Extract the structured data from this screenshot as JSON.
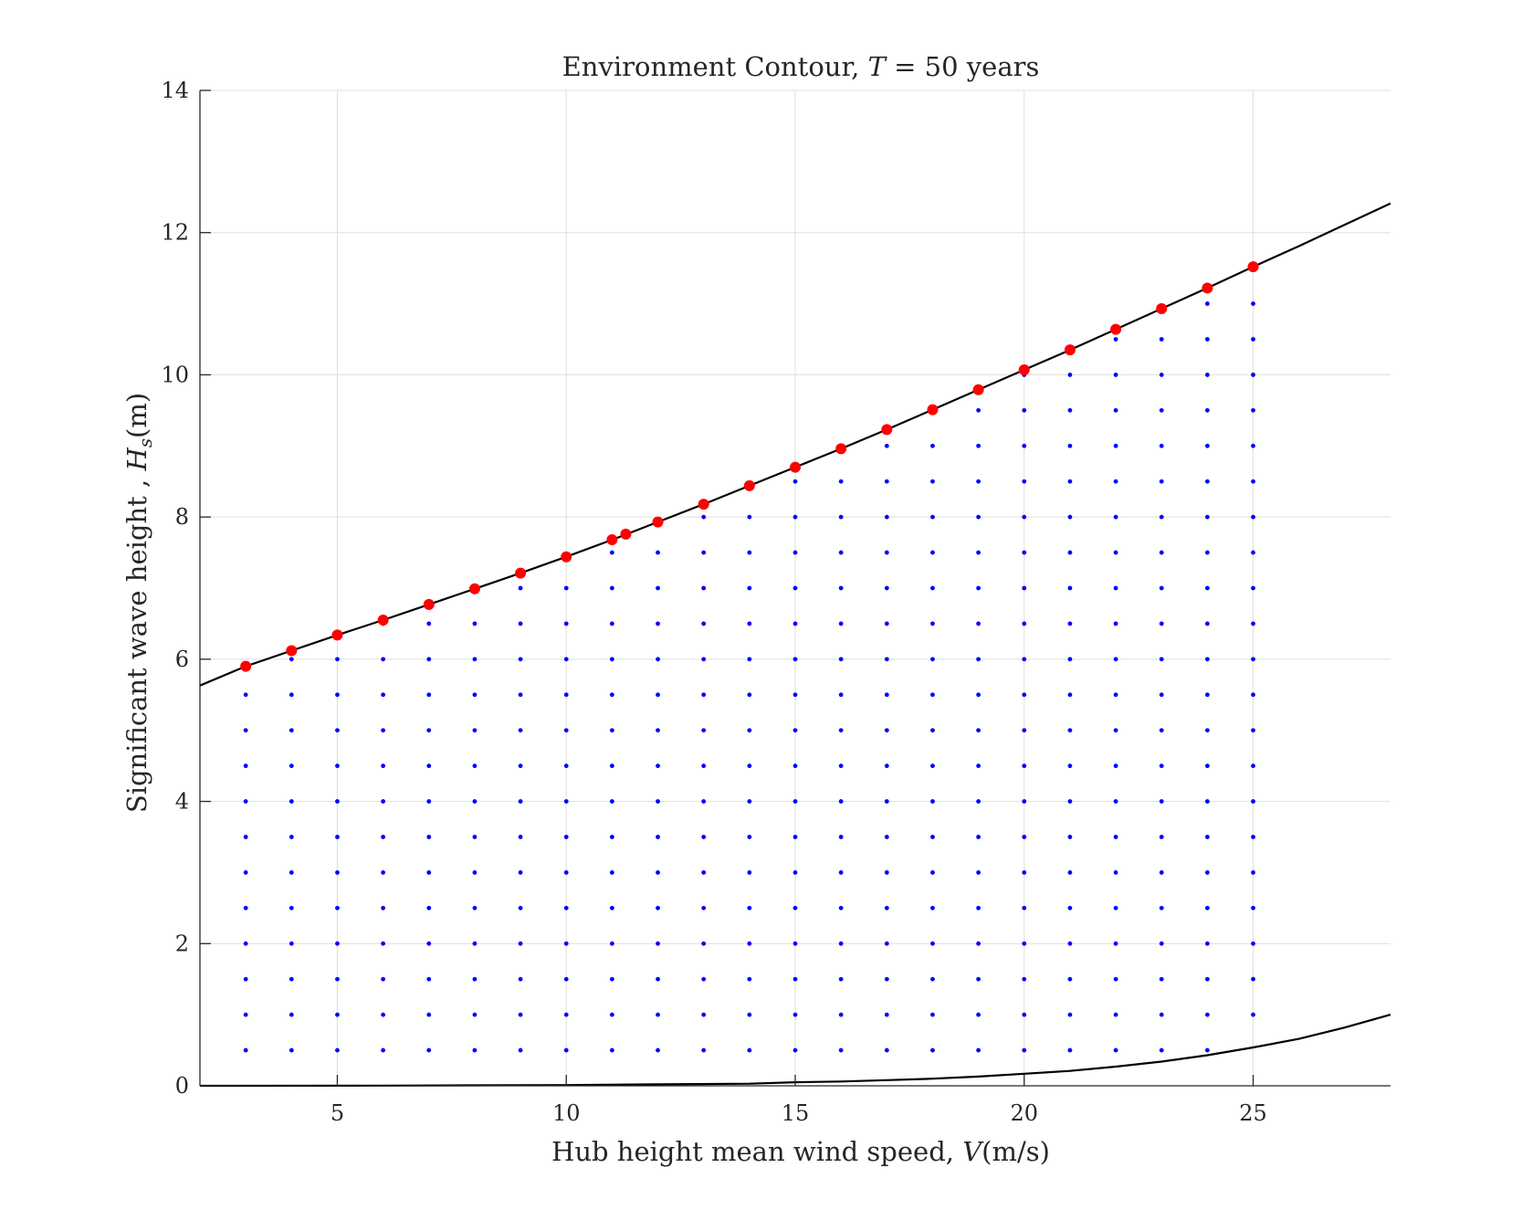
{
  "chart_data": {
    "type": "scatter",
    "title": "Environment Contour, T = 50 years",
    "title_parts": {
      "prefix": "Environment Contour, ",
      "var": "T",
      "suffix": " = 50 years"
    },
    "xlabel": "Hub height mean wind speed, V(m/s)",
    "xlabel_parts": {
      "prefix": "Hub height mean wind speed, ",
      "var": "V",
      "unit": "(m/s)"
    },
    "ylabel": "Significant wave height , Hs(m)",
    "ylabel_parts": {
      "prefix": "Significant wave height , ",
      "var": "H",
      "sub": "s",
      "unit": "(m)"
    },
    "xlim": [
      2,
      28
    ],
    "ylim": [
      0,
      14
    ],
    "xticks": [
      5,
      10,
      15,
      20,
      25
    ],
    "yticks": [
      0,
      2,
      4,
      6,
      8,
      10,
      12,
      14
    ],
    "grid": true,
    "colors": {
      "contour": "#000000",
      "contour_points": "#ff0000",
      "grid_points": "#0000ff"
    },
    "series": [
      {
        "kind": "line",
        "values": [
          [
            2,
            5.63
          ],
          [
            3,
            5.9
          ],
          [
            4,
            6.12
          ],
          [
            5,
            6.34
          ],
          [
            6,
            6.55
          ],
          [
            7,
            6.77
          ],
          [
            8,
            6.99
          ],
          [
            9,
            7.21
          ],
          [
            10,
            7.44
          ],
          [
            11,
            7.68
          ],
          [
            12,
            7.93
          ],
          [
            13,
            8.18
          ],
          [
            14,
            8.44
          ],
          [
            15,
            8.7
          ],
          [
            16,
            8.96
          ],
          [
            17,
            9.23
          ],
          [
            18,
            9.51
          ],
          [
            19,
            9.79
          ],
          [
            20,
            10.07
          ],
          [
            21,
            10.35
          ],
          [
            22,
            10.64
          ],
          [
            23,
            10.93
          ],
          [
            24,
            11.22
          ],
          [
            25,
            11.52
          ],
          [
            26,
            11.81
          ],
          [
            27,
            12.11
          ],
          [
            28,
            12.41
          ]
        ]
      },
      {
        "kind": "line",
        "values": [
          [
            2,
            0.0
          ],
          [
            6,
            0.002
          ],
          [
            10,
            0.01
          ],
          [
            12,
            0.02
          ],
          [
            14,
            0.03
          ],
          [
            15,
            0.05
          ],
          [
            16,
            0.06
          ],
          [
            17,
            0.08
          ],
          [
            18,
            0.1
          ],
          [
            19,
            0.13
          ],
          [
            20,
            0.17
          ],
          [
            21,
            0.21
          ],
          [
            22,
            0.27
          ],
          [
            23,
            0.34
          ],
          [
            24,
            0.43
          ],
          [
            25,
            0.54
          ],
          [
            26,
            0.66
          ],
          [
            27,
            0.82
          ],
          [
            28,
            1.0
          ]
        ]
      },
      {
        "kind": "points",
        "values": [
          [
            3,
            5.9
          ],
          [
            4,
            6.12
          ],
          [
            5,
            6.34
          ],
          [
            6,
            6.55
          ],
          [
            7,
            6.77
          ],
          [
            8,
            6.99
          ],
          [
            9,
            7.21
          ],
          [
            10,
            7.44
          ],
          [
            11,
            7.68
          ],
          [
            11.3,
            7.76
          ],
          [
            12,
            7.93
          ],
          [
            13,
            8.18
          ],
          [
            14,
            8.44
          ],
          [
            15,
            8.7
          ],
          [
            16,
            8.96
          ],
          [
            17,
            9.23
          ],
          [
            18,
            9.51
          ],
          [
            19,
            9.79
          ],
          [
            20,
            10.07
          ],
          [
            21,
            10.35
          ],
          [
            22,
            10.64
          ],
          [
            23,
            10.93
          ],
          [
            24,
            11.22
          ],
          [
            25,
            11.52
          ]
        ]
      },
      {
        "kind": "grid-points",
        "x": [
          3,
          4,
          5,
          6,
          7,
          8,
          9,
          10,
          11,
          12,
          13,
          14,
          15,
          16,
          17,
          18,
          19,
          20,
          21,
          22,
          23,
          24,
          25
        ],
        "y_step": 0.5,
        "y_min": 0.5,
        "y_max": [
          5.5,
          6.0,
          6.0,
          6.5,
          6.5,
          6.5,
          7.0,
          7.0,
          7.5,
          7.5,
          8.0,
          8.0,
          8.5,
          8.5,
          9.0,
          9.5,
          9.5,
          10.0,
          10.0,
          10.5,
          10.5,
          11.0,
          11.0
        ],
        "y_min_overrides": {
          "24": 0.5,
          "25": 1.0
        }
      }
    ]
  }
}
